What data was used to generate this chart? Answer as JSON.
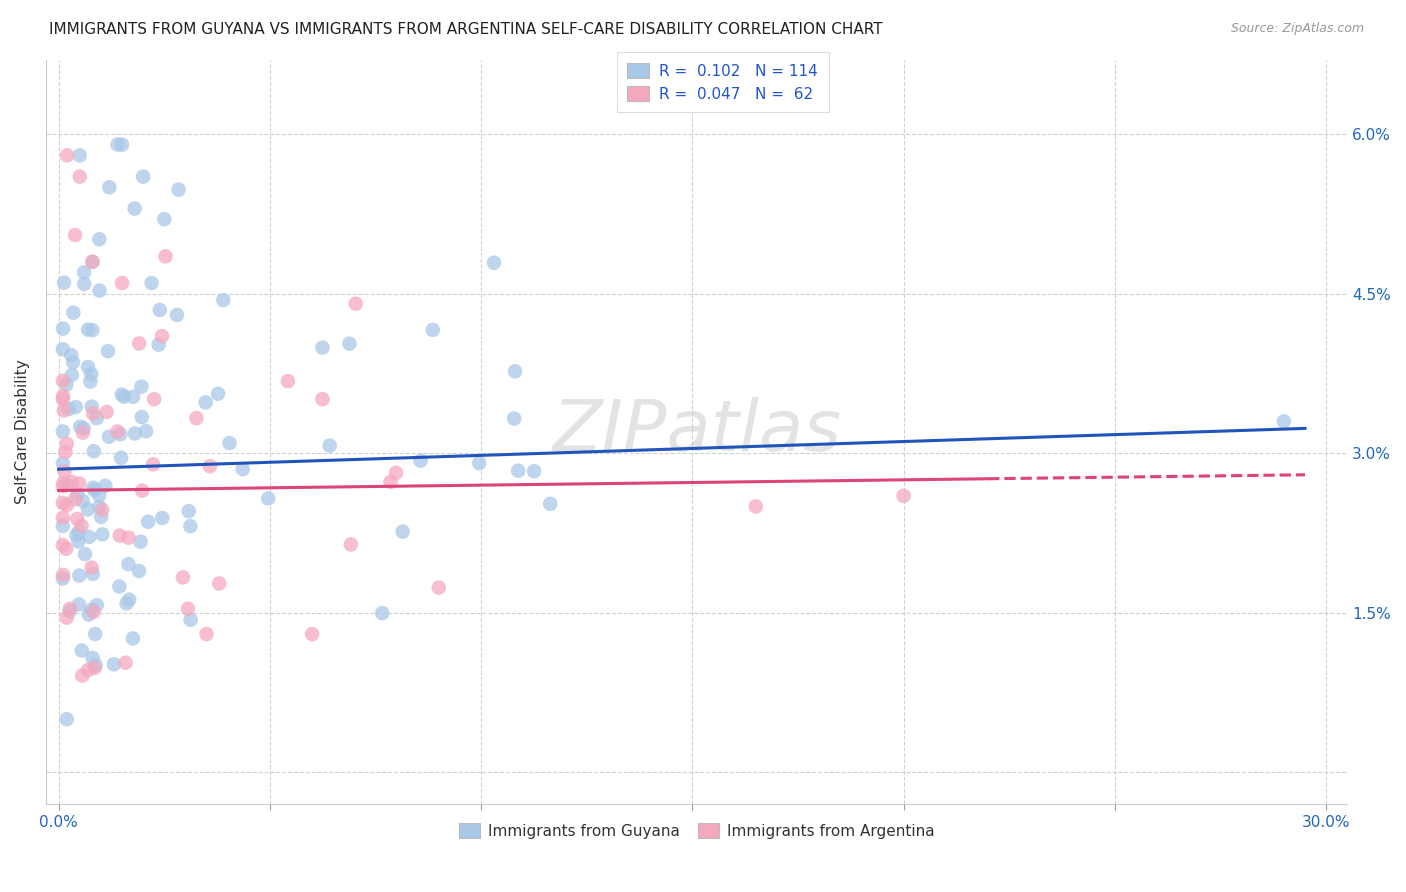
{
  "title": "IMMIGRANTS FROM GUYANA VS IMMIGRANTS FROM ARGENTINA SELF-CARE DISABILITY CORRELATION CHART",
  "source": "Source: ZipAtlas.com",
  "ylabel_left": "Self-Care Disability",
  "legend_R1": "0.102",
  "legend_N1": "114",
  "legend_R2": "0.047",
  "legend_N2": "62",
  "legend_label1": "Immigrants from Guyana",
  "legend_label2": "Immigrants from Argentina",
  "color_guyana": "#a8c8e8",
  "color_argentina": "#f4a8be",
  "color_trend_blue": "#2255bb",
  "color_trend_pink": "#dd4477",
  "watermark": "ZIPAtlas",
  "xlim": [
    0.0,
    0.3
  ],
  "ylim": [
    0.0,
    0.065
  ],
  "xticks": [
    0.0,
    0.05,
    0.1,
    0.15,
    0.2,
    0.25,
    0.3
  ],
  "yticks": [
    0.0,
    0.015,
    0.03,
    0.045,
    0.06
  ],
  "ytick_labels_right": [
    "",
    "1.5%",
    "3.0%",
    "4.5%",
    "6.0%"
  ],
  "xtick_label_left": "0.0%",
  "xtick_label_right": "30.0%"
}
